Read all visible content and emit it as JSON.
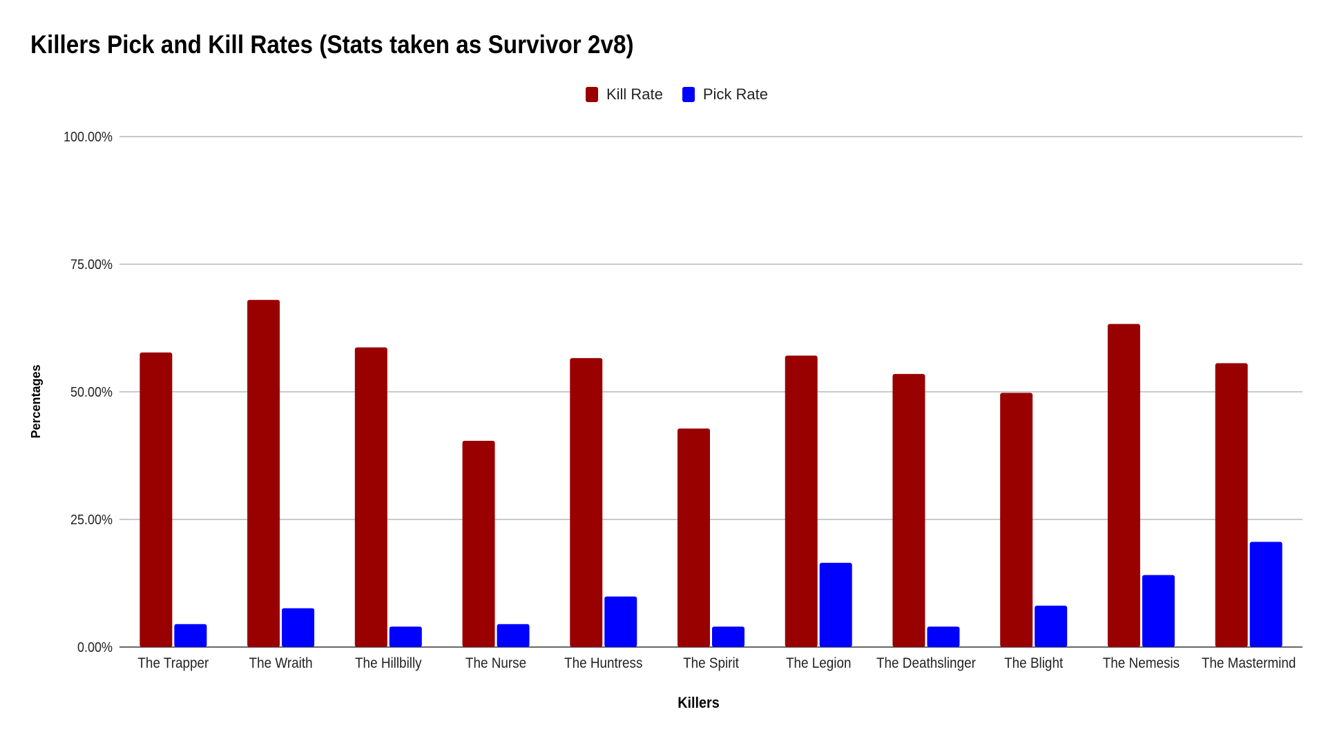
{
  "chart_data": {
    "type": "bar",
    "title": "Killers Pick and Kill Rates (Stats taken as Survivor 2v8)",
    "xlabel": "Killers",
    "ylabel": "Percentages",
    "ylim": [
      0,
      100
    ],
    "yticks": [
      0,
      25,
      50,
      75,
      100
    ],
    "ytick_labels": [
      "0.00%",
      "25.00%",
      "50.00%",
      "75.00%",
      "100.00%"
    ],
    "grid": true,
    "legend_position": "top-center",
    "categories": [
      "The Trapper",
      "The Wraith",
      "The Hillbilly",
      "The Nurse",
      "The Huntress",
      "The Spirit",
      "The Legion",
      "The Deathslinger",
      "The Blight",
      "The Nemesis",
      "The Mastermind"
    ],
    "series": [
      {
        "name": "Kill Rate",
        "color": "#990000",
        "values": [
          57.7,
          68.0,
          58.7,
          40.4,
          56.6,
          42.8,
          57.1,
          53.5,
          49.8,
          63.3,
          55.6
        ]
      },
      {
        "name": "Pick Rate",
        "color": "#0000ff",
        "values": [
          4.5,
          7.6,
          4.0,
          4.5,
          9.9,
          4.0,
          16.5,
          4.0,
          8.1,
          14.1,
          20.6
        ]
      }
    ]
  }
}
